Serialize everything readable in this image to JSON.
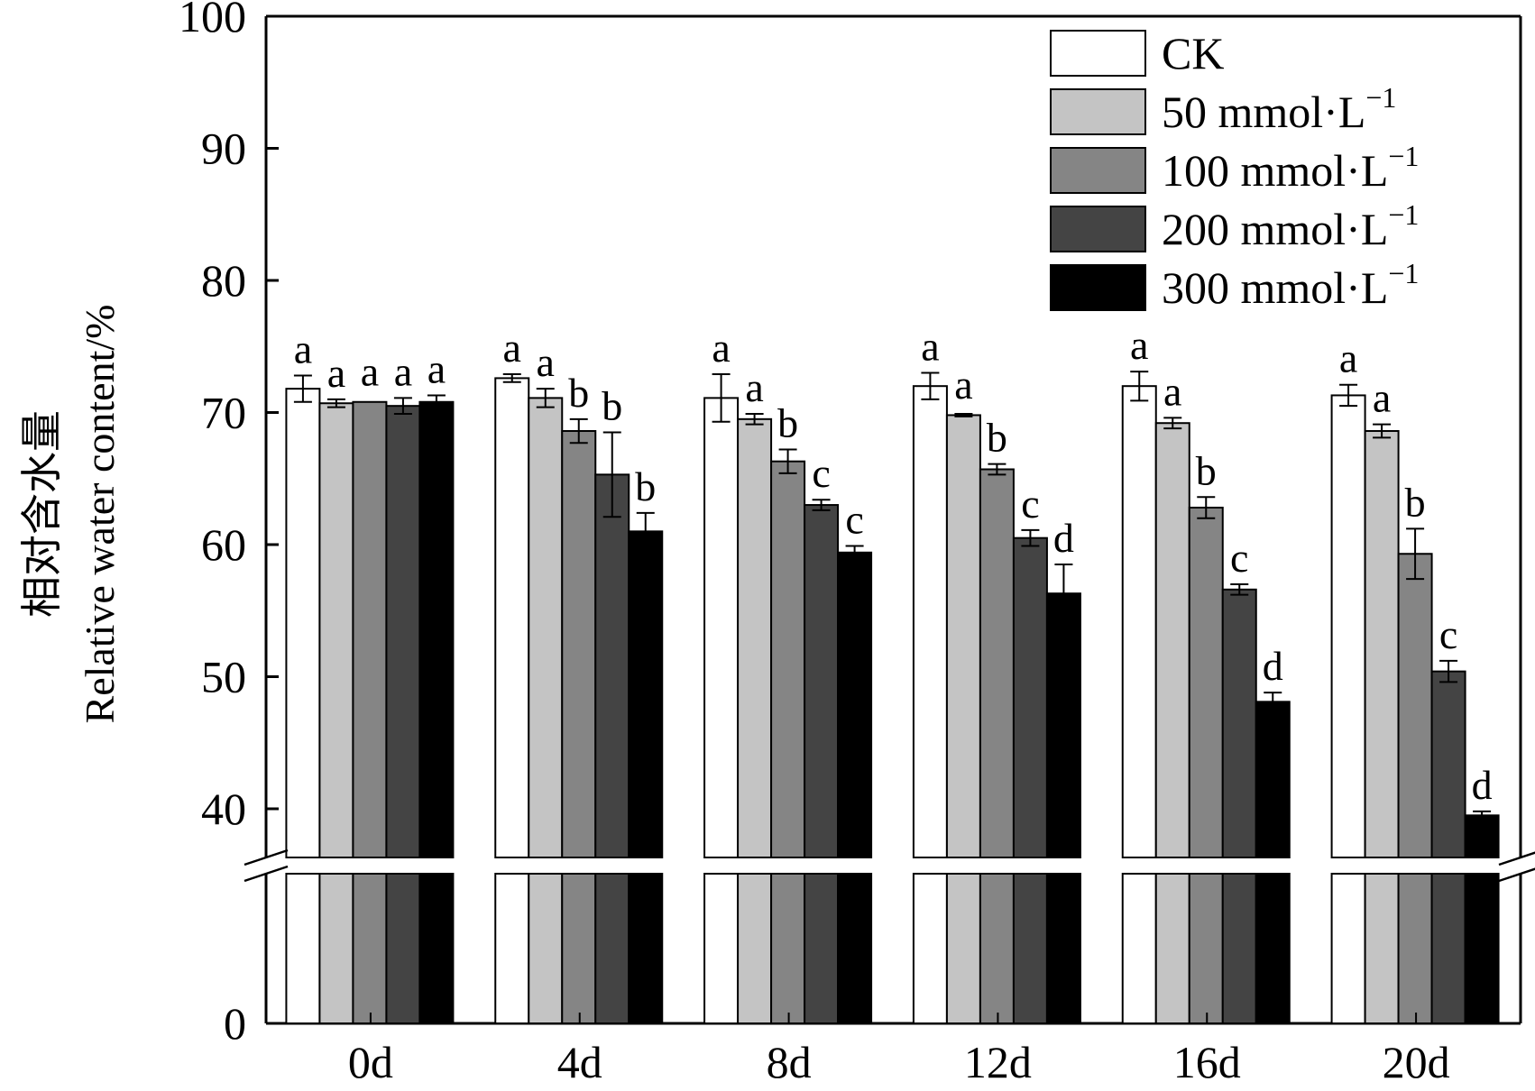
{
  "chart_data": {
    "type": "bar",
    "categories": [
      "0d",
      "4d",
      "8d",
      "12d",
      "16d",
      "20d"
    ],
    "ylabel": "相对含水量",
    "ylabel_en": "Relative water content/%",
    "yticks": [
      "0",
      "40",
      "50",
      "60",
      "70",
      "80",
      "90",
      "100"
    ],
    "y_break": [
      0,
      35
    ],
    "ylim": [
      0,
      100
    ],
    "grid": false,
    "legend_position": "top-right",
    "legend": [
      {
        "main": "CK",
        "sup": ""
      },
      {
        "main": "50 mmol·L",
        "sup": "−1"
      },
      {
        "main": "100 mmol·L",
        "sup": "−1"
      },
      {
        "main": "200 mmol·L",
        "sup": "−1"
      },
      {
        "main": "300 mmol·L",
        "sup": "−1"
      }
    ],
    "series": [
      {
        "name": "CK",
        "color": "#ffffff",
        "values": [
          71.8,
          72.6,
          71.1,
          72.0,
          72.0,
          71.3
        ],
        "errors": [
          1.0,
          0.3,
          1.8,
          1.0,
          1.1,
          0.8
        ],
        "labels": [
          "a",
          "a",
          "a",
          "a",
          "a",
          "a"
        ]
      },
      {
        "name": "50 mmol·L−1",
        "color": "#c4c4c4",
        "values": [
          70.7,
          71.1,
          69.5,
          69.8,
          69.2,
          68.6
        ],
        "errors": [
          0.3,
          0.7,
          0.4,
          0.1,
          0.4,
          0.5
        ],
        "labels": [
          "a",
          "a",
          "a",
          "a",
          "a",
          "a"
        ]
      },
      {
        "name": "100 mmol·L−1",
        "color": "#858585",
        "values": [
          70.8,
          68.6,
          66.3,
          65.7,
          62.8,
          59.3
        ],
        "errors": [
          0.0,
          0.9,
          0.9,
          0.4,
          0.8,
          1.9
        ],
        "labels": [
          "a",
          "b",
          "b",
          "b",
          "b",
          "b"
        ]
      },
      {
        "name": "200 mmol·L−1",
        "color": "#444444",
        "values": [
          70.5,
          65.3,
          63.0,
          60.5,
          56.6,
          50.4
        ],
        "errors": [
          0.6,
          3.2,
          0.4,
          0.6,
          0.4,
          0.8
        ],
        "labels": [
          "a",
          "b",
          "c",
          "c",
          "c",
          "c"
        ]
      },
      {
        "name": "300 mmol·L−1",
        "color": "#000000",
        "values": [
          70.8,
          61.0,
          59.4,
          56.3,
          48.1,
          39.5
        ],
        "errors": [
          0.5,
          1.4,
          0.5,
          2.2,
          0.7,
          0.3
        ],
        "labels": [
          "a",
          "b",
          "c",
          "d",
          "d",
          "d"
        ]
      }
    ]
  }
}
